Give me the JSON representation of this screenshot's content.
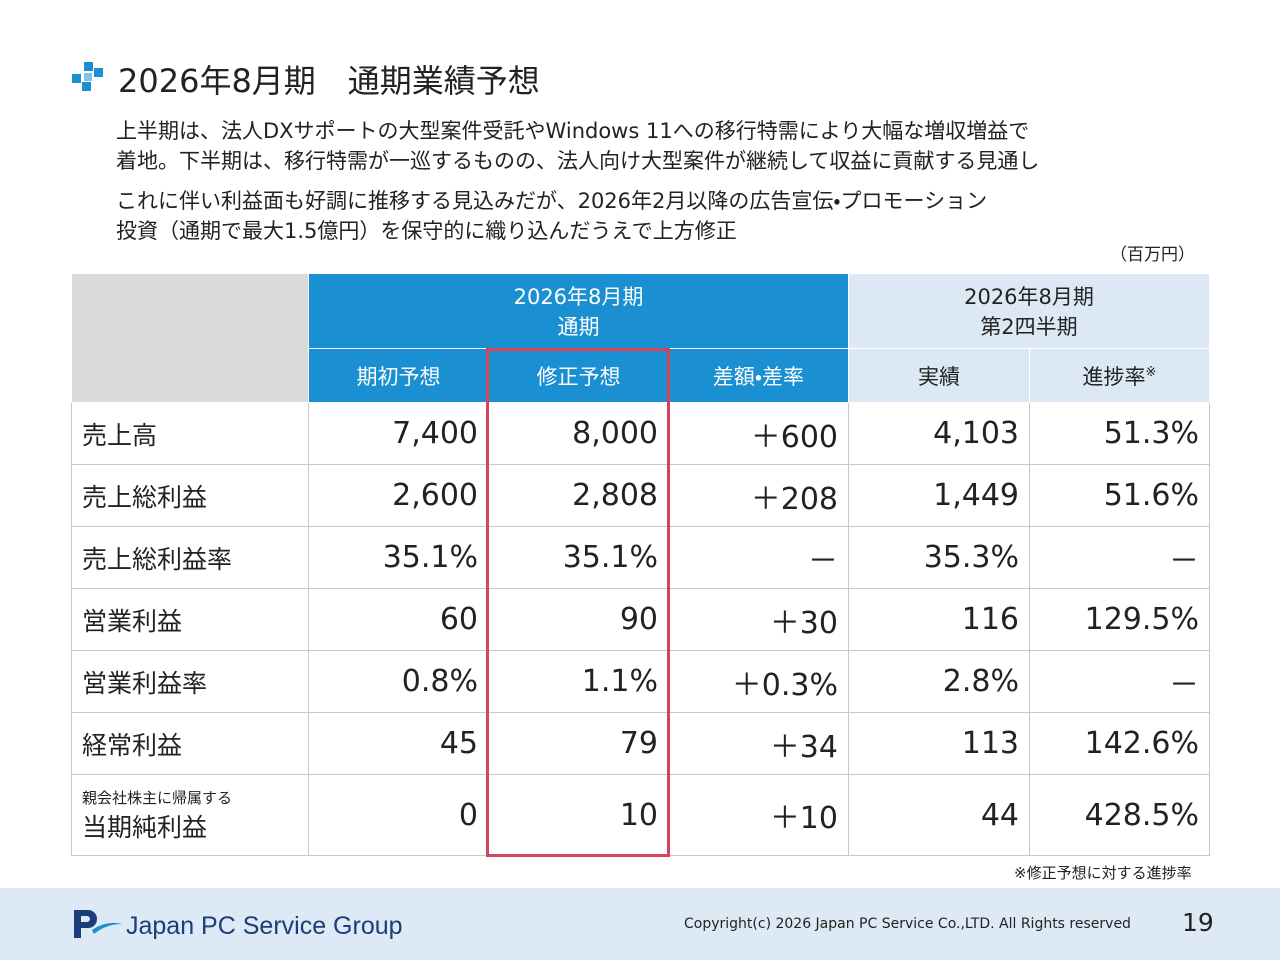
{
  "title": "2026年8月期　通期業績予想",
  "paragraphs": [
    [
      "上半期は、法人DXサポートの大型案件受託やWindows 11への移行特需により大幅な増収増益で",
      "着地。下半期は、移行特需が一巡するものの、法人向け大型案件が継続して収益に貢献する見通し"
    ],
    [
      "これに伴い利益面も好調に推移する見込みだが、2026年2月以降の広告宣伝・プロモーション",
      "投資（通期で最大1.5億円）を保守的に織り込んだうえで上方修正"
    ]
  ],
  "unit": "（百万円）",
  "table": {
    "group_headers": [
      [
        "2026年8月期",
        "通期"
      ],
      [
        "2026年8月期",
        "第2四半期"
      ]
    ],
    "columns": [
      "期初予想",
      "修正予想",
      "差額・差率",
      "実績",
      "進捗率"
    ],
    "column_note_mark": "※",
    "rows": [
      {
        "label": "売上高",
        "cells": [
          "7,400",
          "8,000",
          "＋600",
          "4,103",
          "51.3%"
        ]
      },
      {
        "label": "売上総利益",
        "cells": [
          "2,600",
          "2,808",
          "＋208",
          "1,449",
          "51.6%"
        ]
      },
      {
        "label": "売上総利益率",
        "cells": [
          "35.1%",
          "35.1%",
          "－",
          "35.3%",
          "－"
        ]
      },
      {
        "label": "営業利益",
        "cells": [
          "60",
          "90",
          "＋30",
          "116",
          "129.5%"
        ]
      },
      {
        "label": "営業利益率",
        "cells": [
          "0.8%",
          "1.1%",
          "＋0.3%",
          "2.8%",
          "－"
        ]
      },
      {
        "label": "経常利益",
        "cells": [
          "45",
          "79",
          "＋34",
          "113",
          "142.6%"
        ]
      },
      {
        "sublabel": "親会社株主に帰属する",
        "label": "当期純利益",
        "cells": [
          "0",
          "10",
          "＋10",
          "44",
          "428.5%"
        ]
      }
    ],
    "footnote": "※修正予想に対する進捗率"
  },
  "footer": {
    "brand": "Japan PC Service Group",
    "copyright": "Copyright(c) 2026 Japan PC Service Co.,LTD. All Rights reserved",
    "page": "19"
  }
}
